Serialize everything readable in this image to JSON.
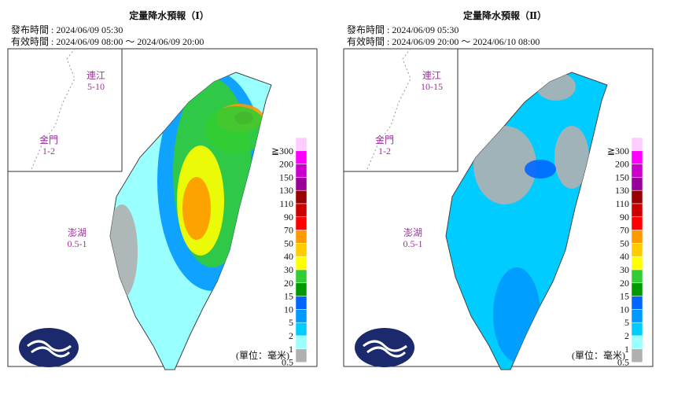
{
  "panels": [
    {
      "title": "定量降水預報（Ⅰ）",
      "issued": "發布時間 : 2024/06/09 05:30",
      "valid": "有效時間 : 2024/06/09 08:00 ～ 2024/06/09 20:00",
      "insets": [
        {
          "name": "連江",
          "range": "5-10"
        },
        {
          "name": "金門",
          "range": "1-2"
        },
        {
          "name": "澎湖",
          "range": "0.5-1"
        }
      ],
      "unit": "(單位：毫米)"
    },
    {
      "title": "定量降水預報（Ⅱ）",
      "issued": "發布時間 : 2024/06/09 05:30",
      "valid": "有效時間 : 2024/06/09 20:00 ～ 2024/06/10 08:00",
      "insets": [
        {
          "name": "連江",
          "range": "10-15"
        },
        {
          "name": "金門",
          "range": "1-2"
        },
        {
          "name": "澎湖",
          "range": "0.5-1"
        }
      ],
      "unit": "(單位：毫米)"
    }
  ],
  "legend": {
    "labels": [
      "≧300",
      "200",
      "150",
      "130",
      "110",
      "90",
      "70",
      "50",
      "40",
      "30",
      "20",
      "15",
      "10",
      "5",
      "2",
      "1",
      "0.5"
    ],
    "colors": [
      "#ffccff",
      "#ff00ff",
      "#cc00cc",
      "#990099",
      "#990000",
      "#cc0000",
      "#ff0000",
      "#ff9900",
      "#ffcc00",
      "#ffff00",
      "#33cc33",
      "#009900",
      "#0066ff",
      "#0099ff",
      "#00ccff",
      "#99ffff",
      "#b0b0b0"
    ]
  }
}
